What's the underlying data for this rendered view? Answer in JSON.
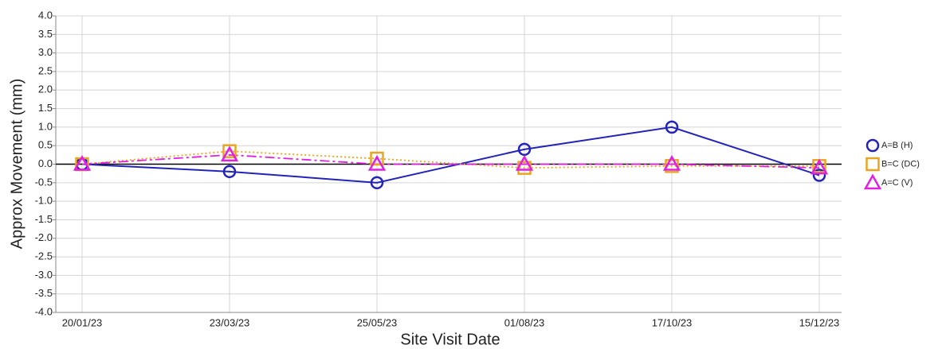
{
  "chart_data": {
    "type": "line",
    "ylabel": "Approx Movement (mm)",
    "xlabel": "Site Visit Date",
    "categories": [
      "20/01/23",
      "23/03/23",
      "25/05/23",
      "01/08/23",
      "17/10/23",
      "15/12/23"
    ],
    "series": [
      {
        "name": "A=B (H)",
        "color": "#2323b8",
        "line_style": "solid",
        "marker": "circle",
        "values": [
          0,
          -0.2,
          -0.5,
          0.4,
          1.0,
          -0.3
        ]
      },
      {
        "name": "B=C (DC)",
        "color": "#e8a521",
        "line_style": "dotted",
        "marker": "square",
        "values": [
          0,
          0.35,
          0.15,
          -0.1,
          -0.05,
          -0.05
        ]
      },
      {
        "name": "A=C (V)",
        "color": "#e020e0",
        "line_style": "dashdot",
        "marker": "triangle",
        "values": [
          0,
          0.25,
          0,
          0,
          0,
          -0.1
        ]
      }
    ],
    "ylim": [
      -4,
      4
    ],
    "yticks": [
      {
        "value": 4,
        "label": "4.0"
      },
      3.5,
      {
        "value": 3,
        "label": "3.0"
      },
      2.5,
      {
        "value": 2,
        "label": "2.0"
      },
      1.5,
      {
        "value": 1,
        "label": "1.0"
      },
      0.5,
      {
        "value": 0,
        "label": "0.0"
      },
      -0.5,
      {
        "value": -1,
        "label": "-1.0"
      },
      -1.5,
      {
        "value": -2,
        "label": "-2.0"
      },
      -2.5,
      {
        "value": -3,
        "label": "-3.0"
      },
      -3.5,
      {
        "value": -4,
        "label": "-4.0"
      }
    ],
    "grid": true,
    "legend": "right"
  }
}
